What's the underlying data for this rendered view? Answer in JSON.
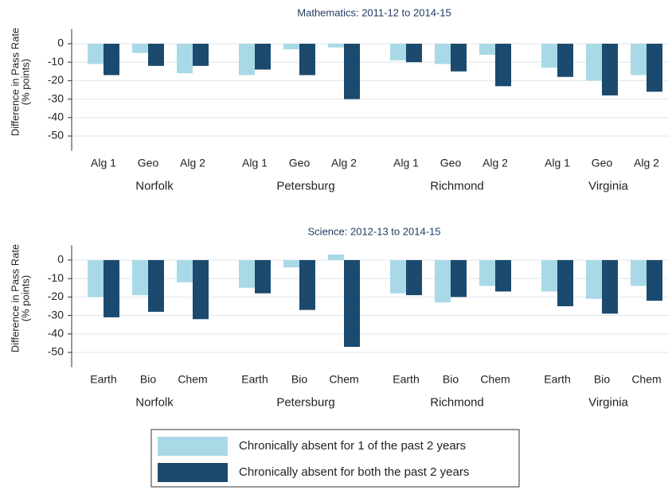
{
  "chart_data": [
    {
      "type": "bar",
      "title": "Mathematics: 2011-12 to 2014-15",
      "y_label": [
        "Difference in Pass Rate",
        "(% points)"
      ],
      "groups": [
        "Norfolk",
        "Petersburg",
        "Richmond",
        "Virginia"
      ],
      "categories": [
        "Alg 1",
        "Geo",
        "Alg 2",
        "Alg 1",
        "Geo",
        "Alg 2",
        "Alg 1",
        "Geo",
        "Alg 2",
        "Alg 1",
        "Geo",
        "Alg 2"
      ],
      "series": [
        {
          "name": "Chronically absent for 1 of the past 2 years",
          "color": "#a9d9e7",
          "values": [
            -11,
            -5,
            -16,
            -17,
            -3,
            -2,
            -9,
            -11,
            -6,
            -13,
            -20,
            -17
          ]
        },
        {
          "name": "Chronically absent for both the past 2 years",
          "color": "#1b4a6e",
          "values": [
            -17,
            -12,
            -12,
            -14,
            -17,
            -30,
            -10,
            -15,
            -23,
            -18,
            -28,
            -26
          ]
        }
      ],
      "ylim": [
        -58,
        8
      ],
      "yticks": [
        0,
        -10,
        -20,
        -30,
        -40,
        -50
      ],
      "grid": true
    },
    {
      "type": "bar",
      "title": "Science: 2012-13 to 2014-15",
      "y_label": [
        "Difference in Pass Rate",
        "(% points)"
      ],
      "groups": [
        "Norfolk",
        "Petersburg",
        "Richmond",
        "Virginia"
      ],
      "categories": [
        "Earth",
        "Bio",
        "Chem",
        "Earth",
        "Bio",
        "Chem",
        "Earth",
        "Bio",
        "Chem",
        "Earth",
        "Bio",
        "Chem"
      ],
      "series": [
        {
          "name": "Chronically absent for 1 of the past 2 years",
          "color": "#a9d9e7",
          "values": [
            -20,
            -19,
            -12,
            -15,
            -4,
            3,
            -18,
            -23,
            -14,
            -17,
            -21,
            -14
          ]
        },
        {
          "name": "Chronically absent for both the past 2 years",
          "color": "#1b4a6e",
          "values": [
            -31,
            -28,
            -32,
            -18,
            -27,
            -47,
            -19,
            -20,
            -17,
            -25,
            -29,
            -22
          ]
        }
      ],
      "ylim": [
        -58,
        8
      ],
      "yticks": [
        0,
        -10,
        -20,
        -30,
        -40,
        -50
      ],
      "grid": true
    }
  ]
}
